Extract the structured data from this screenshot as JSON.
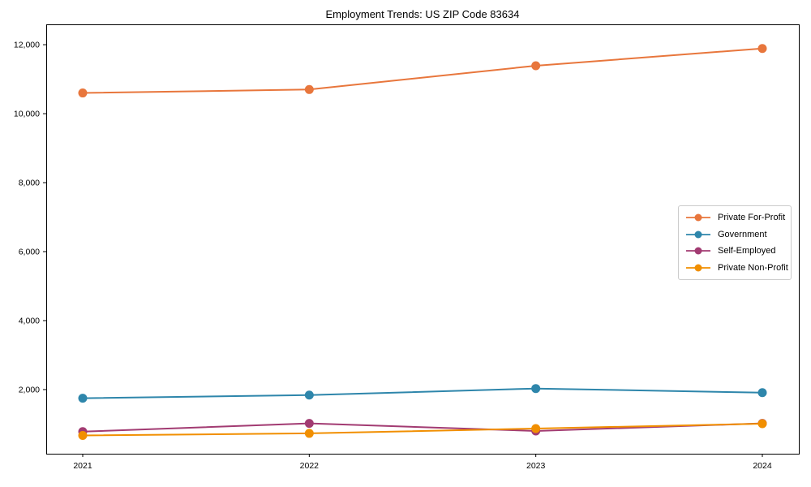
{
  "chart_data": {
    "type": "line",
    "title": "Employment Trends: US ZIP Code 83634",
    "categories": [
      "2021",
      "2022",
      "2023",
      "2024"
    ],
    "series": [
      {
        "name": "Private For-Profit",
        "color": "#E8763C",
        "values": [
          10600,
          10700,
          11390,
          11890
        ]
      },
      {
        "name": "Government",
        "color": "#2E86AB",
        "values": [
          1750,
          1840,
          2030,
          1910
        ]
      },
      {
        "name": "Self-Employed",
        "color": "#A23B72",
        "values": [
          780,
          1020,
          800,
          1020
        ]
      },
      {
        "name": "Private Non-Profit",
        "color": "#F18F01",
        "values": [
          670,
          730,
          870,
          1010
        ]
      }
    ],
    "xlabel": "",
    "ylabel": "",
    "ylim": [
      140,
      12590
    ],
    "yticks": [
      2000,
      4000,
      6000,
      8000,
      10000,
      12000
    ],
    "yticklabels": [
      "2,000",
      "4,000",
      "6,000",
      "8,000",
      "10,000",
      "12,000"
    ],
    "grid": false,
    "legend_position": "center-right",
    "marker": "circle",
    "axis_color": "#000000",
    "background": "#ffffff"
  }
}
